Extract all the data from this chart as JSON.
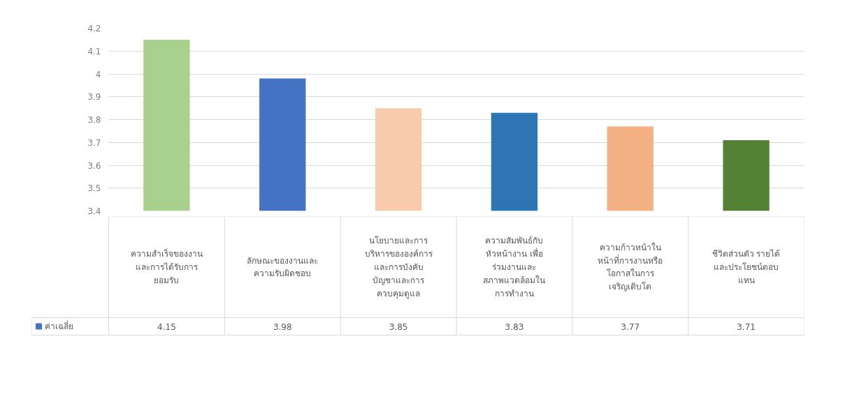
{
  "chart_data": {
    "type": "bar",
    "categories": [
      "ความสำเร็จของงาน\nและการได้รับการ\nยอมรับ",
      "ลักษณะของงานและ\nความรับผิดชอบ",
      "นโยบายและการ\nบริหารขององค์การ\nและการบังคับ\nบัญชาและการ\nควบคุมดูแล",
      "ความสัมพันธ์กับ\nหัวหน้างาน เพื่อ\nร่วมงานและ\nสภาพแวดล้อมใน\nการทำงาน",
      "ความก้าวหน้าใน\nหน้าที่การงานหรือ\nโอกาสในการ\nเจริญเติบโต",
      "ชีวิตส่วนตัว รายได้\nและประโยชน์ตอบ\nแทน"
    ],
    "series": [
      {
        "name": "ค่าเฉลี่ย",
        "color": "#4472c4",
        "colors": [
          "#a9d18e",
          "#4472c4",
          "#f8cbad",
          "#2e75b6",
          "#f4b183",
          "#548235"
        ],
        "values": [
          4.15,
          3.98,
          3.85,
          3.83,
          3.77,
          3.71
        ]
      }
    ],
    "ylim": [
      3.4,
      4.2
    ],
    "yticks": [
      3.4,
      3.5,
      3.6,
      3.7,
      3.8,
      3.9,
      4,
      4.1,
      4.2
    ],
    "grid": "y",
    "data_labels": true
  }
}
